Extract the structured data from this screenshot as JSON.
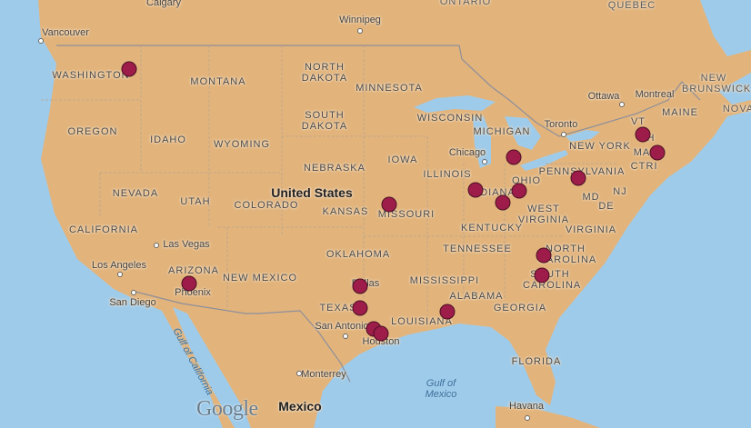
{
  "map": {
    "colors": {
      "land": "#e2b47c",
      "water": "#9fcbea",
      "marker": "#9d1c49",
      "border": "#8f8f9a"
    },
    "labels": {
      "countries": [
        "United States",
        "Mexico"
      ],
      "provinces": [
        "ONTARIO",
        "QUEBEC",
        "NEW BRUNSWICK",
        "NOVA"
      ],
      "states": [
        "WASHINGTON",
        "MONTANA",
        "NORTH DAKOTA",
        "MINNESOTA",
        "WISCONSIN",
        "MICHIGAN",
        "OREGON",
        "IDAHO",
        "WYOMING",
        "SOUTH DAKOTA",
        "IOWA",
        "NEBRASKA",
        "ILLINOIS",
        "INDIANA",
        "OHIO",
        "PENNSYLVANIA",
        "NEW YORK",
        "NEVADA",
        "UTAH",
        "COLORADO",
        "KANSAS",
        "MISSOURI",
        "WEST VIRGINIA",
        "VIRGINIA",
        "KENTUCKY",
        "CALIFORNIA",
        "OKLAHOMA",
        "TENNESSEE",
        "NORTH CAROLINA",
        "ARIZONA",
        "NEW MEXICO",
        "MISSISSIPPI",
        "ALABAMA",
        "SOUTH CAROLINA",
        "GEORGIA",
        "TEXAS",
        "LOUISIANA",
        "FLORIDA",
        "MAINE",
        "VT",
        "MA",
        "CT",
        "RI",
        "MD",
        "NJ",
        "DE",
        "H"
      ],
      "cities": [
        "Calgary",
        "Vancouver",
        "Winnipeg",
        "Ottawa",
        "Montreal",
        "Toronto",
        "Chicago",
        "Las Vegas",
        "Los Angeles",
        "San Diego",
        "Phoenix",
        "Dallas",
        "San Antonio",
        "Houston",
        "Monterrey",
        "Havana"
      ],
      "water": [
        "Gulf of California",
        "Gulf of Mexico"
      ]
    },
    "marker_count": 17,
    "attribution": "Google"
  }
}
